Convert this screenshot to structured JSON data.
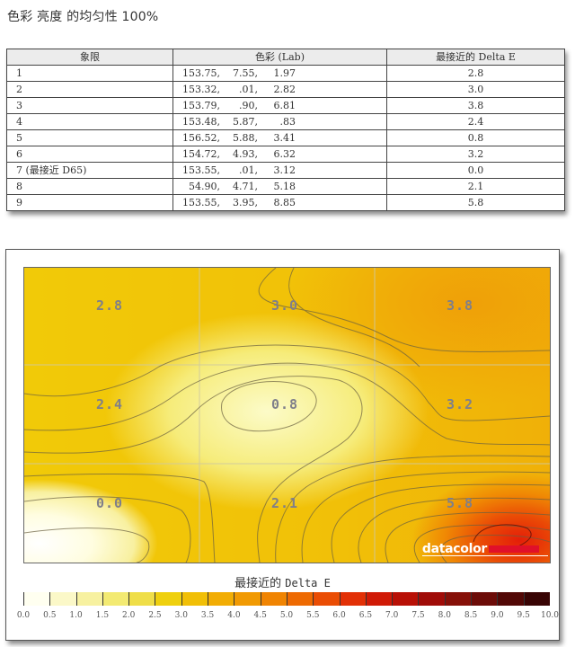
{
  "title": "色彩 亮度 的均匀性 100%",
  "table": {
    "headers": [
      "象限",
      "色彩 (Lab)",
      "最接近的 Delta E"
    ],
    "rows": [
      {
        "quadrant": "1",
        "L": "153.75,",
        "a": "7.55,",
        "b": "1.97",
        "delta_e": "2.8"
      },
      {
        "quadrant": "2",
        "L": "153.32,",
        "a": ".01,",
        "b": "2.82",
        "delta_e": "3.0"
      },
      {
        "quadrant": "3",
        "L": "153.79,",
        "a": ".90,",
        "b": "6.81",
        "delta_e": "3.8"
      },
      {
        "quadrant": "4",
        "L": "153.48,",
        "a": "5.87,",
        "b": ".83",
        "delta_e": "2.4"
      },
      {
        "quadrant": "5",
        "L": "156.52,",
        "a": "5.88,",
        "b": "3.41",
        "delta_e": "0.8"
      },
      {
        "quadrant": "6",
        "L": "154.72,",
        "a": "4.93,",
        "b": "6.32",
        "delta_e": "3.2"
      },
      {
        "quadrant": "7 (最接近 D65)",
        "L": "153.55,",
        "a": ".01,",
        "b": "3.12",
        "delta_e": "0.0"
      },
      {
        "quadrant": "8",
        "L": "54.90,",
        "a": "4.71,",
        "b": "5.18",
        "delta_e": "2.1"
      },
      {
        "quadrant": "9",
        "L": "153.55,",
        "a": "3.95,",
        "b": "8.85",
        "delta_e": "5.8"
      }
    ]
  },
  "chart": {
    "cell_labels": [
      "2.8",
      "3.0",
      "3.8",
      "2.4",
      "0.8",
      "3.2",
      "0.0",
      "2.1",
      "5.8"
    ],
    "logo": "datacolor",
    "legend_title_cn": "最接近的",
    "legend_title_en": "Delta E",
    "colorbar_ticks": [
      "0.0",
      "0.5",
      "1.0",
      "1.5",
      "2.0",
      "2.5",
      "3.0",
      "3.5",
      "4.0",
      "4.5",
      "5.0",
      "5.5",
      "6.0",
      "6.5",
      "7.0",
      "7.5",
      "8.0",
      "8.5",
      "9.0",
      "9.5",
      "10.0"
    ],
    "colorbar_colors": [
      "#fffff0",
      "#fbf8c8",
      "#f7f1a0",
      "#f3ea72",
      "#efde48",
      "#efd00e",
      "#f1bf06",
      "#f2ad04",
      "#f19a03",
      "#f08402",
      "#ee6a02",
      "#ea4d04",
      "#e23006",
      "#d01a06",
      "#b81006",
      "#a00c08",
      "#861008",
      "#6c0c08",
      "#520806",
      "#380404"
    ],
    "accent_colors": {
      "logo_bar": "#e0102a",
      "plot_hot": "#e82a0a",
      "plot_cool": "#ffffff",
      "plot_base": "#f1c40a"
    }
  },
  "chart_data": {
    "type": "heatmap",
    "title": "色彩 亮度 的均匀性 100%",
    "grid": [
      [
        2.8,
        3.0,
        3.8
      ],
      [
        2.4,
        0.8,
        3.2
      ],
      [
        0.0,
        2.1,
        5.8
      ]
    ],
    "rows": [
      "top",
      "middle",
      "bottom"
    ],
    "cols": [
      "left",
      "center",
      "right"
    ],
    "legend_title": "最接近的 Delta E",
    "colorbar_range": [
      0.0,
      10.0
    ],
    "colorbar_step": 0.5,
    "contours": true,
    "grid_lines": true,
    "lab_values": [
      {
        "quadrant": 1,
        "L": 153.75,
        "a": 7.55,
        "b": 1.97,
        "delta_e": 2.8
      },
      {
        "quadrant": 2,
        "L": 153.32,
        "a": 0.01,
        "b": 2.82,
        "delta_e": 3.0
      },
      {
        "quadrant": 3,
        "L": 153.79,
        "a": 0.9,
        "b": 6.81,
        "delta_e": 3.8
      },
      {
        "quadrant": 4,
        "L": 153.48,
        "a": 5.87,
        "b": 0.83,
        "delta_e": 2.4
      },
      {
        "quadrant": 5,
        "L": 156.52,
        "a": 5.88,
        "b": 3.41,
        "delta_e": 0.8
      },
      {
        "quadrant": 6,
        "L": 154.72,
        "a": 4.93,
        "b": 6.32,
        "delta_e": 3.2
      },
      {
        "quadrant": 7,
        "L": 153.55,
        "a": 0.01,
        "b": 3.12,
        "delta_e": 0.0
      },
      {
        "quadrant": 8,
        "L": 54.9,
        "a": 4.71,
        "b": 5.18,
        "delta_e": 2.1
      },
      {
        "quadrant": 9,
        "L": 153.55,
        "a": 3.95,
        "b": 8.85,
        "delta_e": 5.8
      }
    ]
  }
}
